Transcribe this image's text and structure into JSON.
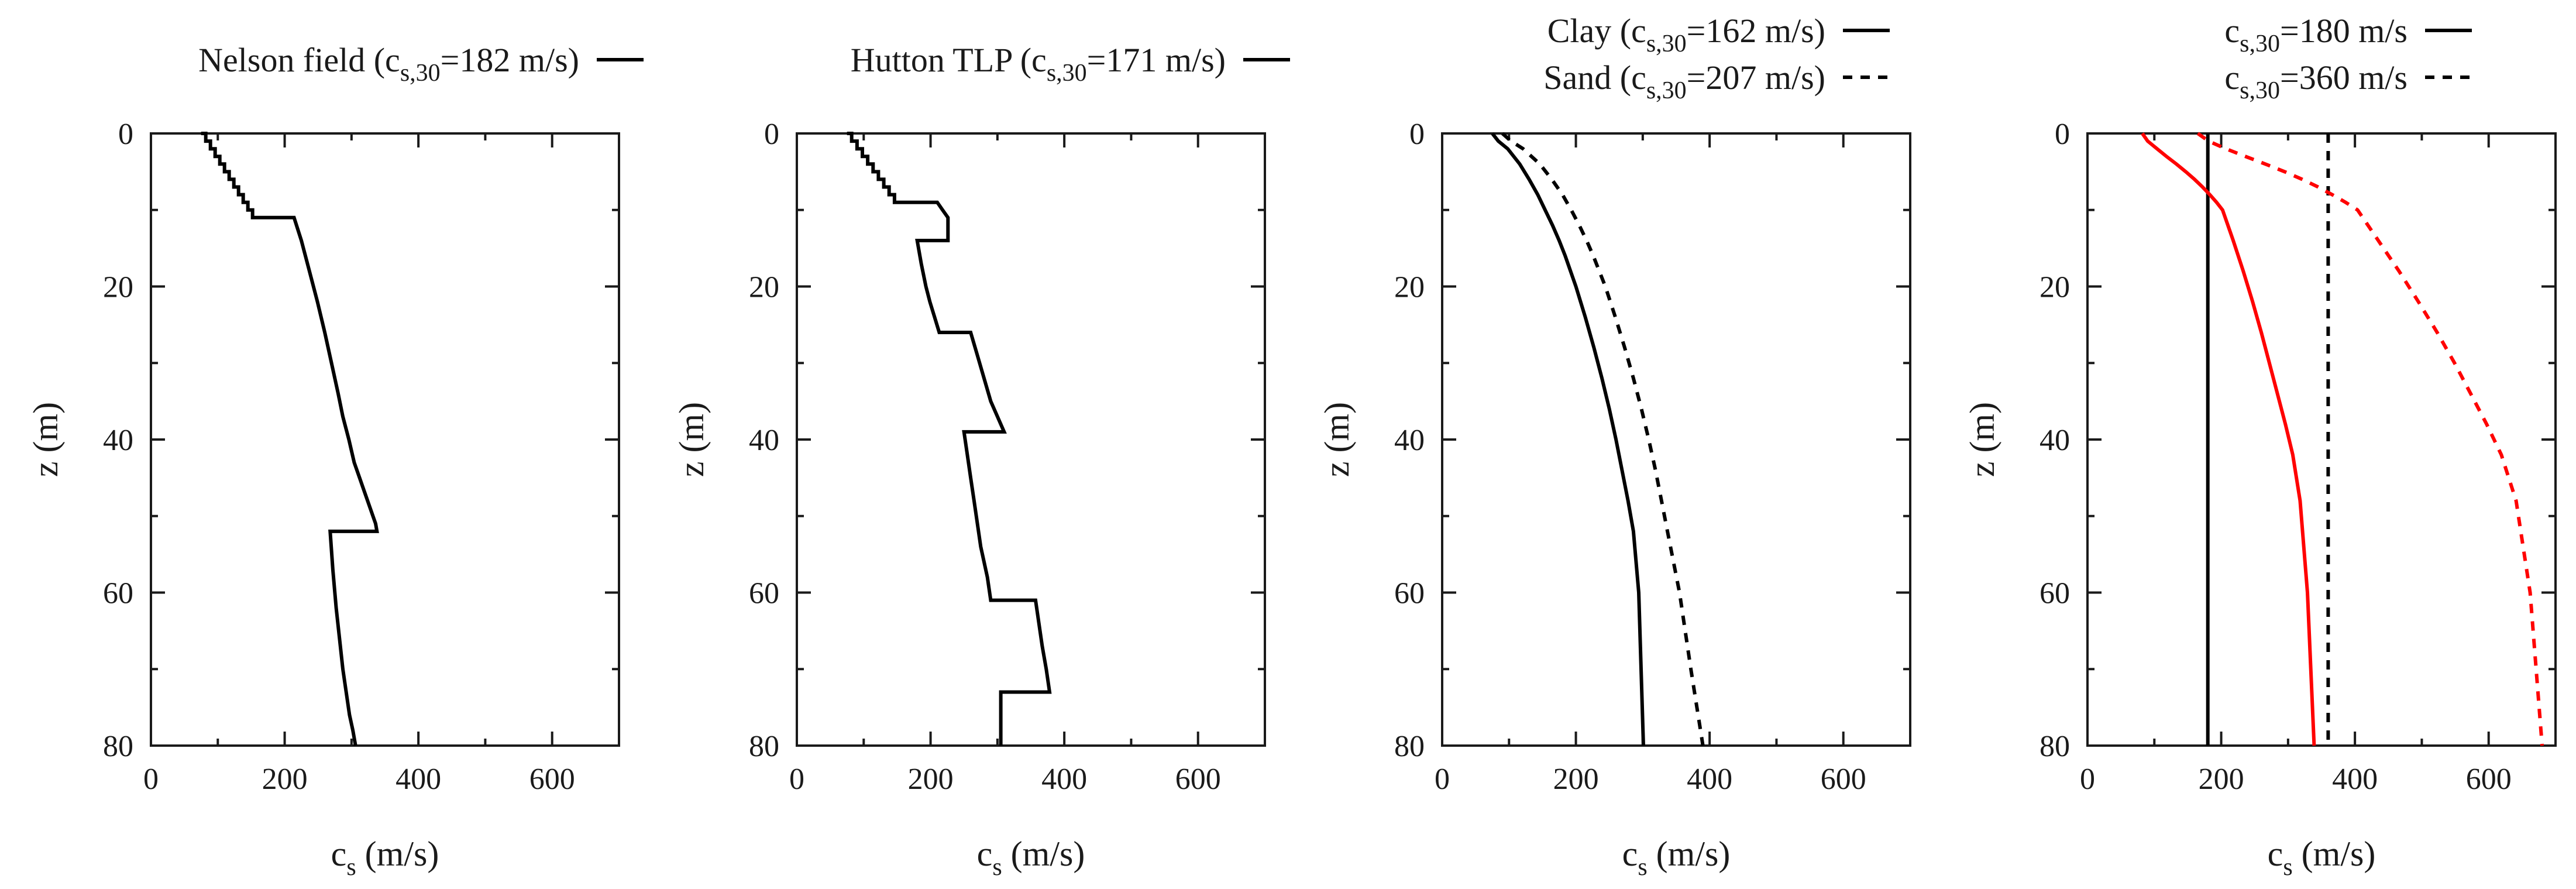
{
  "chart_data": [
    {
      "type": "line",
      "xlabel": "c",
      "xlabel_sub": "s",
      "xlabel_tail": " (m/s)",
      "ylabel": "z (m)",
      "xlim": [
        0,
        700
      ],
      "ylim": [
        0,
        80
      ],
      "y_inverted": true,
      "xticks": [
        0,
        200,
        400,
        600
      ],
      "yticks": [
        0,
        20,
        40,
        60,
        80
      ],
      "legend_position": "top",
      "series": [
        {
          "name": "Nelson field (c",
          "name_sub": "s,30",
          "name_tail": "=182 m/s)",
          "color": "#000000",
          "dash": "solid",
          "x": [
            75,
            82,
            82,
            89,
            89,
            96,
            96,
            103,
            103,
            110,
            110,
            117,
            117,
            124,
            124,
            131,
            131,
            138,
            138,
            145,
            145,
            152,
            152,
            159,
            159,
            214,
            225,
            237,
            249,
            260,
            270,
            280,
            287,
            296,
            304,
            312,
            320,
            328,
            336,
            338,
            338,
            268,
            272,
            277,
            282,
            287,
            292,
            297,
            302,
            306
          ],
          "y": [
            0,
            0,
            1,
            1,
            2,
            2,
            3,
            3,
            4,
            4,
            5,
            5,
            6,
            6,
            7,
            7,
            8,
            8,
            9,
            9,
            10,
            10,
            11,
            11,
            11,
            11,
            14,
            18,
            22,
            26,
            30,
            34,
            37,
            40,
            43,
            45,
            47,
            49,
            51,
            52,
            52,
            52,
            57,
            62,
            66,
            70,
            73,
            76,
            78,
            80
          ]
        }
      ]
    },
    {
      "type": "line",
      "xlabel": "c",
      "xlabel_sub": "s",
      "xlabel_tail": " (m/s)",
      "ylabel": "z (m)",
      "xlim": [
        0,
        700
      ],
      "ylim": [
        0,
        80
      ],
      "y_inverted": true,
      "xticks": [
        0,
        200,
        400,
        600
      ],
      "yticks": [
        0,
        20,
        40,
        60,
        80
      ],
      "legend_position": "top",
      "series": [
        {
          "name": "Hutton TLP (c",
          "name_sub": "s,30",
          "name_tail": "=171 m/s)",
          "color": "#000000",
          "dash": "solid",
          "x": [
            75,
            82,
            82,
            90,
            90,
            98,
            98,
            106,
            106,
            114,
            114,
            122,
            122,
            130,
            130,
            138,
            138,
            146,
            146,
            210,
            218,
            226,
            226,
            180,
            186,
            193,
            199,
            206,
            213,
            213,
            260,
            270,
            280,
            290,
            300,
            310,
            310,
            250,
            255,
            260,
            265,
            270,
            275,
            280,
            285,
            290,
            290,
            357,
            362,
            367,
            373,
            378,
            378,
            305,
            305
          ],
          "y": [
            0,
            0,
            1,
            1,
            2,
            2,
            3,
            3,
            4,
            4,
            5,
            5,
            6,
            6,
            7,
            7,
            8,
            8,
            9,
            9,
            10,
            11,
            14,
            14,
            17,
            20,
            22,
            24,
            26,
            26,
            26,
            29,
            32,
            35,
            37,
            39,
            39,
            39,
            42,
            45,
            48,
            51,
            54,
            56,
            58,
            61,
            61,
            61,
            64,
            67,
            70,
            73,
            73,
            73,
            80
          ]
        }
      ]
    },
    {
      "type": "line",
      "xlabel": "c",
      "xlabel_sub": "s",
      "xlabel_tail": " (m/s)",
      "ylabel": "z (m)",
      "xlim": [
        0,
        700
      ],
      "ylim": [
        0,
        80
      ],
      "y_inverted": true,
      "xticks": [
        0,
        200,
        400,
        600
      ],
      "yticks": [
        0,
        20,
        40,
        60,
        80
      ],
      "legend_position": "top-right",
      "series": [
        {
          "name": "Clay (c",
          "name_sub": "s,30",
          "name_tail": "=162 m/s)",
          "color": "#000000",
          "dash": "solid",
          "x": [
            75,
            84,
            98,
            116,
            130,
            143,
            154,
            165,
            175,
            184,
            200,
            214,
            227,
            239,
            250,
            260,
            269,
            278,
            286,
            294,
            301
          ],
          "y": [
            0,
            1,
            2,
            4,
            6,
            8,
            10,
            12,
            14,
            16,
            20,
            24,
            28,
            32,
            36,
            40,
            44,
            48,
            52,
            60,
            80
          ]
        },
        {
          "name": "Sand (c",
          "name_sub": "s,30",
          "name_tail": "=207 m/s)",
          "color": "#000000",
          "dash": "dashed",
          "x": [
            90,
            103,
            121,
            146,
            164,
            180,
            193,
            205,
            216,
            226,
            244,
            259,
            273,
            286,
            298,
            309,
            319,
            328,
            337,
            355,
            372,
            390
          ],
          "y": [
            0,
            1,
            2,
            4,
            6,
            8,
            10,
            12,
            14,
            16,
            20,
            24,
            28,
            32,
            36,
            40,
            44,
            48,
            52,
            60,
            70,
            80
          ]
        }
      ]
    },
    {
      "type": "line",
      "xlabel": "c",
      "xlabel_sub": "s",
      "xlabel_tail": " (m/s)",
      "ylabel": "z (m)",
      "xlim": [
        0,
        700
      ],
      "ylim": [
        0,
        80
      ],
      "y_inverted": true,
      "xticks": [
        0,
        200,
        400,
        600
      ],
      "yticks": [
        0,
        20,
        40,
        60,
        80
      ],
      "legend_position": "top-right",
      "series": [
        {
          "name": "c",
          "name_sub": "s,30",
          "name_tail": "=180 m/s",
          "color": "#000000",
          "dash": "solid",
          "x": [
            180,
            180
          ],
          "y": [
            0,
            80
          ]
        },
        {
          "name": "c",
          "name_sub": "s,30",
          "name_tail": "=360 m/s",
          "color": "#000000",
          "dash": "dashed",
          "x": [
            360,
            360
          ],
          "y": [
            0,
            80
          ]
        },
        {
          "name": "",
          "name_sub": "",
          "name_tail": "",
          "color": "#ff0000",
          "dash": "solid",
          "x": [
            82,
            90,
            104,
            118,
            133,
            147,
            160,
            172,
            183,
            193,
            202,
            218,
            233,
            247,
            260,
            272,
            284,
            296,
            307,
            318,
            329,
            339
          ],
          "y": [
            0,
            1,
            2,
            3,
            4,
            5,
            6,
            7,
            8,
            9,
            10,
            14,
            18,
            22,
            26,
            30,
            34,
            38,
            42,
            48,
            60,
            80
          ]
        },
        {
          "name": "",
          "name_sub": "",
          "name_tail": "",
          "color": "#ff0000",
          "dash": "dashed",
          "x": [
            165,
            181,
            207,
            236,
            266,
            295,
            321,
            345,
            366,
            386,
            404,
            435,
            466,
            495,
            523,
            549,
            573,
            597,
            619,
            641,
            662,
            680
          ],
          "y": [
            0,
            1,
            2,
            3,
            4,
            5,
            6,
            7,
            8,
            9,
            10,
            14,
            18,
            22,
            26,
            30,
            34,
            38,
            42,
            48,
            60,
            80
          ]
        }
      ]
    }
  ]
}
